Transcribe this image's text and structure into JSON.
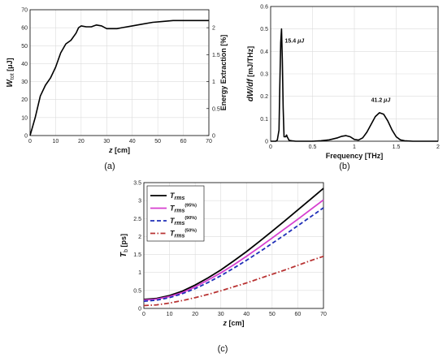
{
  "chart_data": [
    {
      "type": "line",
      "panel_label": "(a)",
      "xlabel": "z [cm]",
      "ylabel_left": "W_tot [μJ]",
      "ylabel_right": "Energy Extraction [%]",
      "xlim": [
        0,
        70
      ],
      "ylim_left": [
        0,
        70
      ],
      "ylim_right": [
        0,
        2.333
      ],
      "x_ticks": [
        "0",
        "10",
        "20",
        "30",
        "40",
        "50",
        "60",
        "70"
      ],
      "y_ticks_left": [
        "0",
        "10",
        "20",
        "30",
        "40",
        "50",
        "60",
        "70"
      ],
      "y_ticks_right": [
        "0",
        "0.5",
        "1",
        "1.5",
        "2"
      ],
      "grid": true,
      "series": [
        {
          "color": "#000000",
          "x": [
            0,
            2,
            4,
            6,
            8,
            10,
            12,
            14,
            16,
            18,
            19,
            20,
            22,
            24,
            26,
            28,
            30,
            32,
            34,
            36,
            40,
            44,
            48,
            52,
            56,
            60,
            64,
            68,
            70
          ],
          "y": [
            0,
            10,
            22,
            28,
            32,
            38,
            46,
            51,
            53,
            57,
            60,
            61,
            60.5,
            60.5,
            61.5,
            61,
            59.5,
            59.5,
            59.5,
            60,
            61,
            62,
            63,
            63.5,
            64,
            64,
            64,
            64,
            64
          ]
        }
      ]
    },
    {
      "type": "line",
      "panel_label": "(b)",
      "xlabel": "Frequency [THz]",
      "ylabel": "dW/df [mJ/THz]",
      "xlim": [
        0,
        2
      ],
      "ylim": [
        0,
        0.6
      ],
      "x_ticks": [
        "0",
        "0.5",
        "1",
        "1.5",
        "2"
      ],
      "y_ticks": [
        "0",
        "0.1",
        "0.2",
        "0.3",
        "0.4",
        "0.5",
        "0.6"
      ],
      "grid": true,
      "annotations": [
        {
          "text": "15.4 μJ",
          "x": 0.17,
          "y": 0.44
        },
        {
          "text": "41.2 μJ",
          "x": 1.2,
          "y": 0.175
        }
      ],
      "series": [
        {
          "color": "#000000",
          "x": [
            0,
            0.06,
            0.08,
            0.1,
            0.11,
            0.12,
            0.13,
            0.14,
            0.15,
            0.16,
            0.18,
            0.19,
            0.2,
            0.22,
            0.25,
            0.3,
            0.4,
            0.5,
            0.6,
            0.7,
            0.8,
            0.85,
            0.9,
            0.95,
            1.0,
            1.05,
            1.1,
            1.15,
            1.2,
            1.25,
            1.3,
            1.35,
            1.4,
            1.45,
            1.5,
            1.55,
            1.6,
            1.7,
            1.8,
            2.0
          ],
          "y": [
            0,
            0,
            0.005,
            0.05,
            0.25,
            0.44,
            0.5,
            0.36,
            0.15,
            0.02,
            0.02,
            0.028,
            0.018,
            0.004,
            0.002,
            0,
            0,
            0,
            0.002,
            0.006,
            0.015,
            0.022,
            0.025,
            0.02,
            0.008,
            0.005,
            0.015,
            0.04,
            0.075,
            0.11,
            0.127,
            0.12,
            0.09,
            0.05,
            0.02,
            0.006,
            0.002,
            0,
            0,
            0
          ]
        }
      ]
    },
    {
      "type": "line",
      "panel_label": "(c)",
      "xlabel": "z [cm]",
      "ylabel": "T_b [ps]",
      "xlim": [
        0,
        70
      ],
      "ylim": [
        0,
        3.5
      ],
      "x_ticks": [
        "0",
        "10",
        "20",
        "30",
        "40",
        "50",
        "60",
        "70"
      ],
      "y_ticks": [
        "0",
        "0.5",
        "1",
        "1.5",
        "2",
        "2.5",
        "3",
        "3.5"
      ],
      "grid": true,
      "legend_position": "top-left",
      "series": [
        {
          "name": "T_rms",
          "label_main": "T",
          "label_sub": "rms",
          "label_sup": "",
          "color": "#000000",
          "dash": "solid",
          "x": [
            0,
            5,
            10,
            15,
            20,
            25,
            30,
            35,
            40,
            45,
            50,
            55,
            60,
            65,
            70
          ],
          "y": [
            0.25,
            0.28,
            0.36,
            0.48,
            0.65,
            0.85,
            1.07,
            1.32,
            1.58,
            1.86,
            2.15,
            2.44,
            2.74,
            3.04,
            3.34
          ]
        },
        {
          "name": "T_rms(95%)",
          "label_main": "T",
          "label_sub": "rms",
          "label_sup": "(95%)",
          "color": "#d63fcf",
          "dash": "solid",
          "x": [
            0,
            5,
            10,
            15,
            20,
            25,
            30,
            35,
            40,
            45,
            50,
            55,
            60,
            65,
            70
          ],
          "y": [
            0.23,
            0.26,
            0.33,
            0.44,
            0.6,
            0.79,
            0.99,
            1.21,
            1.45,
            1.7,
            1.96,
            2.22,
            2.48,
            2.75,
            3.02
          ]
        },
        {
          "name": "T_rms(90%)",
          "label_main": "T",
          "label_sub": "rms",
          "label_sup": "(90%)",
          "color": "#1f2fb8",
          "dash": "dashed",
          "x": [
            0,
            5,
            10,
            15,
            20,
            25,
            30,
            35,
            40,
            45,
            50,
            55,
            60,
            65,
            70
          ],
          "y": [
            0.2,
            0.23,
            0.3,
            0.41,
            0.55,
            0.72,
            0.91,
            1.12,
            1.34,
            1.57,
            1.81,
            2.05,
            2.3,
            2.55,
            2.8
          ]
        },
        {
          "name": "T_rms(50%)",
          "label_main": "T",
          "label_sub": "rms",
          "label_sup": "(50%)",
          "color": "#b83232",
          "dash": "dashdot",
          "x": [
            0,
            5,
            10,
            15,
            20,
            25,
            30,
            35,
            40,
            45,
            50,
            55,
            60,
            65,
            70
          ],
          "y": [
            0.08,
            0.1,
            0.15,
            0.22,
            0.3,
            0.39,
            0.49,
            0.6,
            0.71,
            0.83,
            0.95,
            1.07,
            1.2,
            1.33,
            1.45
          ]
        }
      ]
    }
  ]
}
